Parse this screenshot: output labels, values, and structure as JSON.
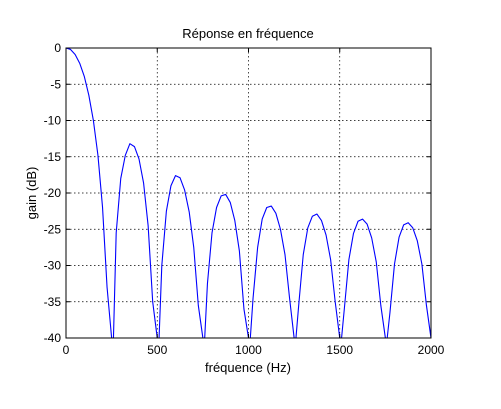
{
  "chart_data": {
    "type": "line",
    "title": "Réponse en fréquence",
    "xlabel": "fréquence (Hz)",
    "ylabel": "gain (dB)",
    "xlim": [
      0,
      2000
    ],
    "ylim": [
      -40,
      0
    ],
    "x_ticks": [
      0,
      500,
      1000,
      1500,
      2000
    ],
    "y_ticks": [
      0,
      -5,
      -10,
      -15,
      -20,
      -25,
      -30,
      -35,
      -40
    ],
    "x_tick_labels": [
      "0",
      "500",
      "1000",
      "1500",
      "2000"
    ],
    "y_tick_labels": [
      "0",
      "-5",
      "-10",
      "-15",
      "-20",
      "-25",
      "-30",
      "-35",
      "-40"
    ],
    "grid": true,
    "series_color": "#0000ff",
    "series": [
      {
        "x": [
          0,
          25,
          50,
          75,
          100,
          125,
          150,
          175,
          200,
          225,
          250,
          260,
          275,
          300,
          325,
          350,
          375,
          400,
          425,
          450,
          475,
          500,
          510,
          525,
          550,
          575,
          600,
          625,
          650,
          675,
          700,
          725,
          750,
          760,
          775,
          800,
          825,
          850,
          875,
          900,
          925,
          950,
          975,
          1000,
          1010,
          1025,
          1050,
          1075,
          1100,
          1125,
          1150,
          1175,
          1200,
          1225,
          1250,
          1260,
          1275,
          1300,
          1325,
          1350,
          1375,
          1400,
          1425,
          1450,
          1475,
          1500,
          1510,
          1525,
          1550,
          1575,
          1600,
          1625,
          1650,
          1675,
          1700,
          1725,
          1750,
          1760,
          1775,
          1800,
          1825,
          1850,
          1875,
          1900,
          1925,
          1950,
          1975,
          2000
        ],
        "values": [
          0,
          -0.2,
          -0.9,
          -2.1,
          -3.9,
          -6.5,
          -10.0,
          -14.8,
          -21.9,
          -33.0,
          -40,
          -40,
          -25.5,
          -18.0,
          -14.8,
          -13.2,
          -13.6,
          -15.3,
          -18.6,
          -24.5,
          -35.0,
          -40,
          -40,
          -30.0,
          -22.5,
          -19.0,
          -17.6,
          -17.9,
          -19.6,
          -22.6,
          -27.5,
          -35.5,
          -40,
          -40,
          -32.5,
          -25.5,
          -22.0,
          -20.4,
          -20.2,
          -21.3,
          -23.8,
          -28.0,
          -36.0,
          -40,
          -40,
          -34.5,
          -27.5,
          -23.6,
          -22.0,
          -21.8,
          -22.8,
          -25.0,
          -28.5,
          -34.5,
          -40,
          -40,
          -35.5,
          -28.5,
          -24.8,
          -23.2,
          -22.9,
          -23.8,
          -25.8,
          -29.2,
          -35.0,
          -40,
          -40,
          -36.0,
          -29.2,
          -25.6,
          -23.9,
          -23.6,
          -24.3,
          -26.2,
          -29.5,
          -35.5,
          -40,
          -40,
          -36.5,
          -29.8,
          -26.1,
          -24.4,
          -24.1,
          -24.8,
          -26.6,
          -29.8,
          -35.5,
          -40
        ]
      }
    ]
  }
}
